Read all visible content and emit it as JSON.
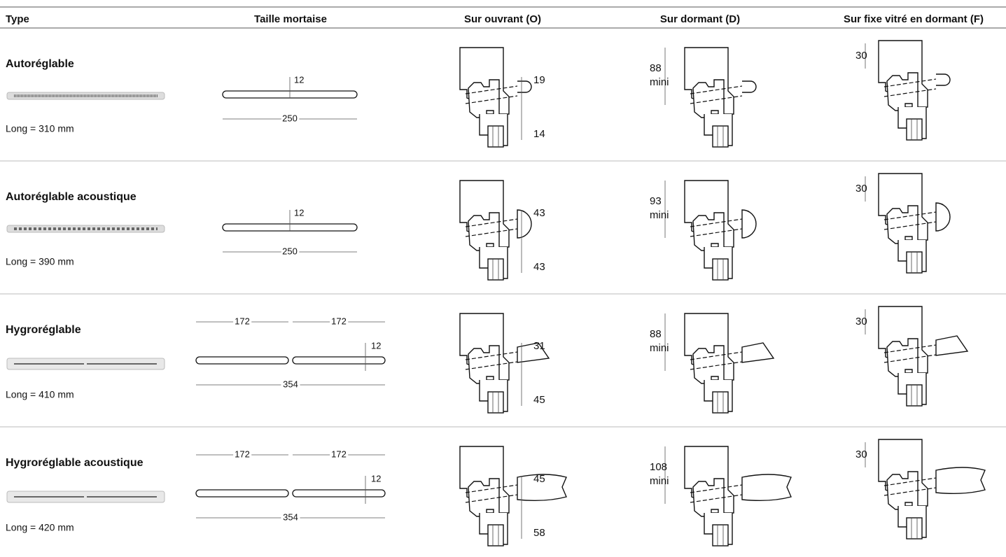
{
  "table": {
    "columns": [
      "Type",
      "Taille mortaise",
      "Sur ouvrant (O)",
      "Sur dormant (D)",
      "Sur fixe vitré en dormant (F)"
    ],
    "rows": [
      {
        "type": "Autoréglable",
        "length": "Long = 310 mm",
        "mortise": {
          "height": "12",
          "total": "250"
        },
        "ouvrant": {
          "top": "19",
          "bottom": "14"
        },
        "dormant": {
          "height": "88",
          "note": "mini"
        },
        "fixe": {
          "height": "30"
        }
      },
      {
        "type": "Autoréglable acoustique",
        "length": "Long = 390 mm",
        "mortise": {
          "height": "12",
          "total": "250"
        },
        "ouvrant": {
          "top": "43",
          "bottom": "43"
        },
        "dormant": {
          "height": "93",
          "note": "mini"
        },
        "fixe": {
          "height": "30"
        }
      },
      {
        "type": "Hygroréglable",
        "length": "Long = 410 mm",
        "mortise": {
          "slots": [
            "172",
            "172"
          ],
          "height": "12",
          "total": "354"
        },
        "ouvrant": {
          "top": "31",
          "bottom": "45"
        },
        "dormant": {
          "height": "88",
          "note": "mini"
        },
        "fixe": {
          "height": "30"
        }
      },
      {
        "type": "Hygroréglable acoustique",
        "length": "Long = 420 mm",
        "mortise": {
          "slots": [
            "172",
            "172"
          ],
          "height": "12",
          "total": "354"
        },
        "ouvrant": {
          "top": "45",
          "bottom": "58"
        },
        "dormant": {
          "height": "108",
          "note": "mini"
        },
        "fixe": {
          "height": "30"
        }
      }
    ]
  }
}
